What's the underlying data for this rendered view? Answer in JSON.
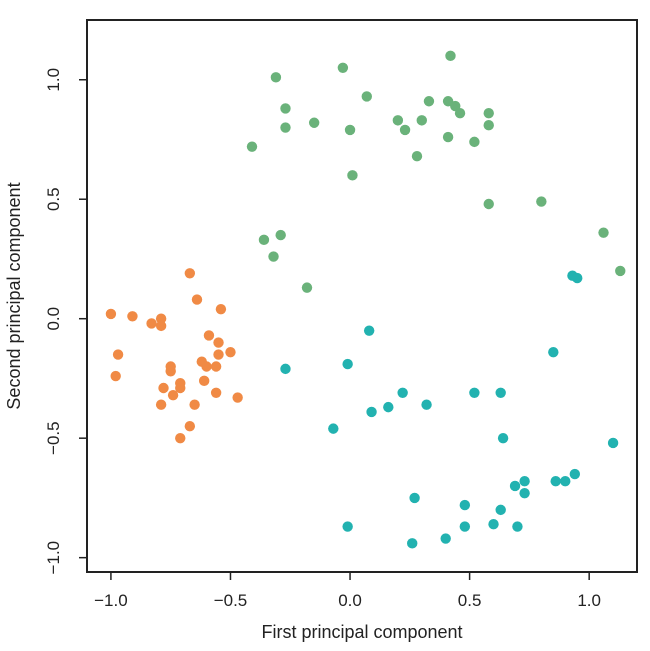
{
  "chart_data": {
    "type": "scatter",
    "title": "",
    "xlabel": "First principal component",
    "ylabel": "Second principal component",
    "xlim": [
      -1.1,
      1.2
    ],
    "ylim": [
      -1.06,
      1.25
    ],
    "xticks": [
      -1.0,
      -0.5,
      0.0,
      0.5,
      1.0
    ],
    "yticks": [
      -1.0,
      -0.5,
      0.0,
      0.5,
      1.0
    ],
    "xtick_labels": [
      "−1.0",
      "−0.5",
      "0.0",
      "0.5",
      "1.0"
    ],
    "ytick_labels": [
      "−1.0",
      "−0.5",
      "0.0",
      "0.5",
      "1.0"
    ],
    "grid": false,
    "legend": "none",
    "series": [
      {
        "color": "#f08a45",
        "points": [
          [
            -1.0,
            0.02
          ],
          [
            -0.91,
            0.01
          ],
          [
            -0.97,
            -0.15
          ],
          [
            -0.98,
            -0.24
          ],
          [
            -0.83,
            -0.02
          ],
          [
            -0.79,
            0.0
          ],
          [
            -0.79,
            -0.03
          ],
          [
            -0.67,
            0.19
          ],
          [
            -0.64,
            0.08
          ],
          [
            -0.54,
            0.04
          ],
          [
            -0.59,
            -0.07
          ],
          [
            -0.55,
            -0.1
          ],
          [
            -0.5,
            -0.14
          ],
          [
            -0.55,
            -0.15
          ],
          [
            -0.62,
            -0.18
          ],
          [
            -0.6,
            -0.2
          ],
          [
            -0.75,
            -0.2
          ],
          [
            -0.75,
            -0.22
          ],
          [
            -0.56,
            -0.2
          ],
          [
            -0.71,
            -0.27
          ],
          [
            -0.61,
            -0.26
          ],
          [
            -0.71,
            -0.29
          ],
          [
            -0.78,
            -0.29
          ],
          [
            -0.74,
            -0.32
          ],
          [
            -0.56,
            -0.31
          ],
          [
            -0.47,
            -0.33
          ],
          [
            -0.79,
            -0.36
          ],
          [
            -0.65,
            -0.36
          ],
          [
            -0.67,
            -0.45
          ],
          [
            -0.71,
            -0.5
          ]
        ]
      },
      {
        "color": "#6ab27a",
        "points": [
          [
            0.42,
            1.1
          ],
          [
            -0.31,
            1.01
          ],
          [
            -0.03,
            1.05
          ],
          [
            0.07,
            0.93
          ],
          [
            0.33,
            0.91
          ],
          [
            0.41,
            0.91
          ],
          [
            0.44,
            0.89
          ],
          [
            0.46,
            0.86
          ],
          [
            0.58,
            0.86
          ],
          [
            -0.27,
            0.88
          ],
          [
            -0.15,
            0.82
          ],
          [
            0.2,
            0.83
          ],
          [
            0.3,
            0.83
          ],
          [
            0.58,
            0.81
          ],
          [
            -0.27,
            0.8
          ],
          [
            0.0,
            0.79
          ],
          [
            0.23,
            0.79
          ],
          [
            0.41,
            0.76
          ],
          [
            0.52,
            0.74
          ],
          [
            -0.41,
            0.72
          ],
          [
            0.28,
            0.68
          ],
          [
            0.01,
            0.6
          ],
          [
            0.58,
            0.48
          ],
          [
            0.8,
            0.49
          ],
          [
            -0.36,
            0.33
          ],
          [
            -0.29,
            0.35
          ],
          [
            -0.32,
            0.26
          ],
          [
            1.06,
            0.36
          ],
          [
            1.13,
            0.2
          ],
          [
            -0.18,
            0.13
          ]
        ]
      },
      {
        "color": "#22b2b0",
        "points": [
          [
            0.08,
            -0.05
          ],
          [
            -0.01,
            -0.19
          ],
          [
            -0.27,
            -0.21
          ],
          [
            0.85,
            -0.14
          ],
          [
            0.93,
            0.18
          ],
          [
            0.95,
            0.17
          ],
          [
            0.22,
            -0.31
          ],
          [
            0.63,
            -0.31
          ],
          [
            0.52,
            -0.31
          ],
          [
            0.16,
            -0.37
          ],
          [
            0.32,
            -0.36
          ],
          [
            0.09,
            -0.39
          ],
          [
            -0.07,
            -0.46
          ],
          [
            0.64,
            -0.5
          ],
          [
            1.1,
            -0.52
          ],
          [
            0.94,
            -0.65
          ],
          [
            0.86,
            -0.68
          ],
          [
            0.9,
            -0.68
          ],
          [
            0.73,
            -0.68
          ],
          [
            0.69,
            -0.7
          ],
          [
            0.73,
            -0.73
          ],
          [
            0.27,
            -0.75
          ],
          [
            0.48,
            -0.78
          ],
          [
            0.63,
            -0.8
          ],
          [
            -0.01,
            -0.87
          ],
          [
            0.48,
            -0.87
          ],
          [
            0.6,
            -0.86
          ],
          [
            0.7,
            -0.87
          ],
          [
            0.26,
            -0.94
          ],
          [
            0.4,
            -0.92
          ]
        ]
      }
    ]
  }
}
